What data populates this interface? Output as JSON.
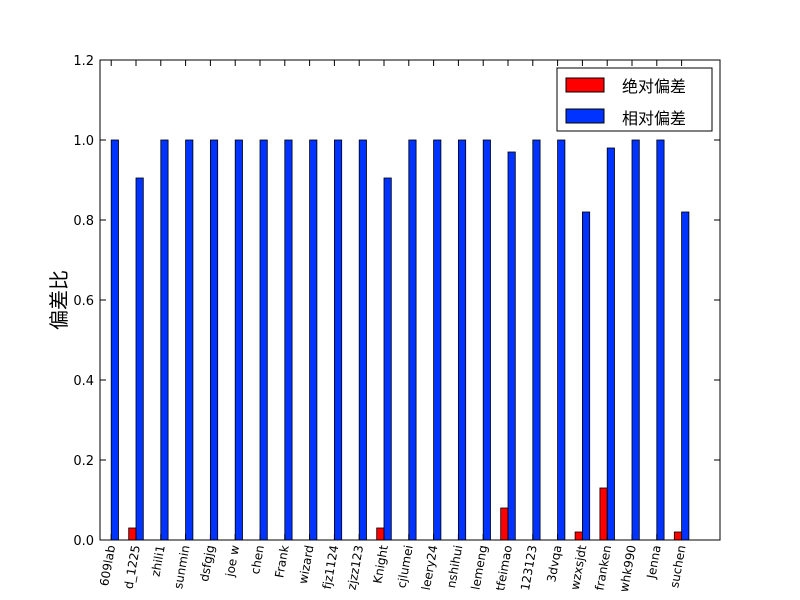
{
  "chart_data": {
    "type": "bar",
    "title": "",
    "xlabel": "",
    "ylabel": "偏差比",
    "ylim": [
      0,
      1.2
    ],
    "yticks": [
      "0.0",
      "0.2",
      "0.4",
      "0.6",
      "0.8",
      "1.0",
      "1.2"
    ],
    "legend_position": "top-right",
    "categories": [
      "609lab",
      "d_1225",
      "zhili1",
      "sunmin",
      "dsfgjg",
      "joe w",
      "chen",
      "Frank",
      "wizard",
      "fjz1124",
      "zjzz123",
      "Knight",
      "cjlumei",
      "leery24",
      "nshihui",
      "lemeng",
      "tfeimao",
      "123123",
      "3dvqa",
      "wzxsjdt",
      "franken",
      "whk990",
      "Jenna",
      "suchen"
    ],
    "series": [
      {
        "name": "绝对偏差",
        "color": "#ff0000",
        "values": [
          0,
          0.03,
          0,
          0,
          0,
          0,
          0,
          0,
          0,
          0,
          0,
          0.03,
          0,
          0,
          0,
          0,
          0.08,
          0,
          0,
          0.02,
          0.13,
          0,
          0,
          0.02
        ]
      },
      {
        "name": "相对偏差",
        "color": "#0033ff",
        "values": [
          1.0,
          0.905,
          1.0,
          1.0,
          1.0,
          1.0,
          1.0,
          1.0,
          1.0,
          1.0,
          1.0,
          0.905,
          1.0,
          1.0,
          1.0,
          1.0,
          0.97,
          1.0,
          1.0,
          0.82,
          0.98,
          1.0,
          1.0,
          0.82
        ]
      }
    ]
  }
}
